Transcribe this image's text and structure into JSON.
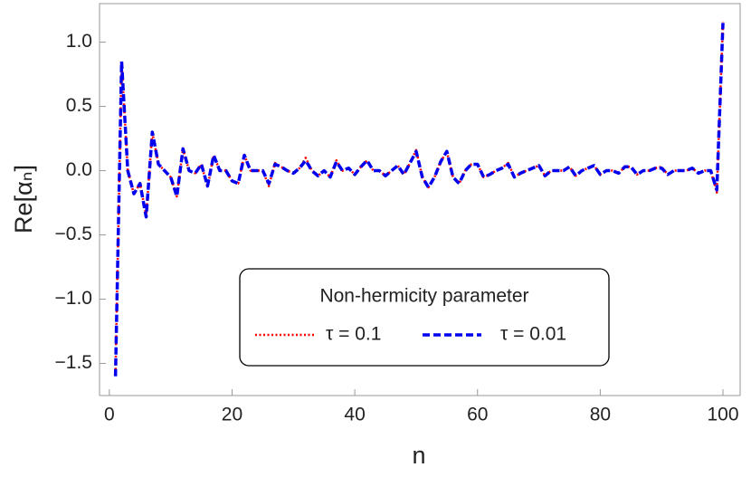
{
  "chart_data": {
    "type": "line",
    "xlabel": "n",
    "ylabel": "Re[αₙ]",
    "legend_title": "Non-hermicity parameter",
    "legend_loc": "lower center",
    "xlim": [
      -1.6,
      102.8
    ],
    "ylim": [
      -1.75,
      1.3
    ],
    "xticks": [
      0,
      20,
      40,
      60,
      80,
      100
    ],
    "yticks": [
      {
        "value": -1.5,
        "label": "−1.5"
      },
      {
        "value": -1.0,
        "label": "−1.0"
      },
      {
        "value": -0.5,
        "label": "−0.5"
      },
      {
        "value": 0.0,
        "label": "0.0"
      },
      {
        "value": 0.5,
        "label": "0.5"
      },
      {
        "value": 1.0,
        "label": "1.0"
      }
    ],
    "x": [
      1,
      2,
      3,
      4,
      5,
      6,
      7,
      8,
      9,
      10,
      11,
      12,
      13,
      14,
      15,
      16,
      17,
      18,
      19,
      20,
      21,
      22,
      23,
      24,
      25,
      26,
      27,
      28,
      29,
      30,
      31,
      32,
      33,
      34,
      35,
      36,
      37,
      38,
      39,
      40,
      41,
      42,
      43,
      44,
      45,
      46,
      47,
      48,
      49,
      50,
      51,
      52,
      53,
      54,
      55,
      56,
      57,
      58,
      59,
      60,
      61,
      62,
      63,
      64,
      65,
      66,
      67,
      68,
      69,
      70,
      71,
      72,
      73,
      74,
      75,
      76,
      77,
      78,
      79,
      80,
      81,
      82,
      83,
      84,
      85,
      86,
      87,
      88,
      89,
      90,
      91,
      92,
      93,
      94,
      95,
      96,
      97,
      98,
      99,
      100
    ],
    "series": [
      {
        "name": "τ = 0.1",
        "color": "#ff0000",
        "style": "dotted",
        "values": [
          -1.58,
          0.85,
          0.0,
          -0.18,
          -0.1,
          -0.35,
          0.3,
          0.05,
          0.0,
          -0.05,
          -0.2,
          0.17,
          0.0,
          -0.02,
          0.05,
          -0.13,
          0.12,
          0.0,
          0.0,
          -0.08,
          -0.1,
          0.12,
          0.0,
          0.0,
          0.0,
          -0.12,
          0.06,
          0.03,
          0.0,
          -0.02,
          0.02,
          0.1,
          0.0,
          -0.04,
          0.0,
          -0.05,
          0.08,
          0.0,
          0.02,
          -0.03,
          0.03,
          0.08,
          0.0,
          0.0,
          -0.04,
          0.0,
          0.04,
          -0.03,
          0.06,
          0.16,
          -0.05,
          -0.13,
          -0.05,
          0.07,
          0.15,
          -0.05,
          -0.1,
          0.0,
          0.05,
          0.05,
          -0.05,
          -0.03,
          0.0,
          0.02,
          0.06,
          -0.05,
          -0.02,
          0.0,
          0.02,
          0.04,
          -0.04,
          0.0,
          0.0,
          0.0,
          0.03,
          -0.04,
          0.0,
          0.02,
          0.04,
          -0.03,
          0.0,
          0.0,
          -0.02,
          0.03,
          0.03,
          -0.03,
          0.0,
          0.0,
          0.02,
          0.03,
          -0.03,
          0.0,
          0.0,
          0.0,
          0.02,
          -0.02,
          0.0,
          0.0,
          -0.17,
          1.16
        ]
      },
      {
        "name": "τ = 0.01",
        "color": "#0000ee",
        "style": "dashed",
        "values": [
          -1.6,
          0.85,
          0.0,
          -0.18,
          -0.1,
          -0.36,
          0.3,
          0.05,
          0.0,
          -0.05,
          -0.2,
          0.17,
          0.0,
          -0.02,
          0.05,
          -0.12,
          0.12,
          0.0,
          0.0,
          -0.08,
          -0.1,
          0.12,
          0.0,
          0.0,
          0.0,
          -0.1,
          0.05,
          0.03,
          0.0,
          -0.02,
          0.02,
          0.08,
          0.0,
          -0.04,
          0.0,
          -0.05,
          0.07,
          0.0,
          0.02,
          -0.03,
          0.03,
          0.08,
          0.0,
          0.0,
          -0.04,
          0.0,
          0.04,
          -0.03,
          0.06,
          0.15,
          -0.05,
          -0.13,
          -0.05,
          0.07,
          0.15,
          -0.05,
          -0.1,
          0.0,
          0.05,
          0.05,
          -0.05,
          -0.03,
          0.0,
          0.02,
          0.05,
          -0.05,
          -0.02,
          0.0,
          0.02,
          0.04,
          -0.04,
          0.0,
          0.0,
          0.0,
          0.03,
          -0.04,
          0.0,
          0.02,
          0.04,
          -0.03,
          0.0,
          0.0,
          -0.02,
          0.03,
          0.03,
          -0.03,
          0.0,
          0.0,
          0.02,
          0.02,
          -0.03,
          0.0,
          0.0,
          0.0,
          0.02,
          -0.02,
          0.0,
          0.0,
          -0.15,
          1.15
        ]
      }
    ]
  }
}
